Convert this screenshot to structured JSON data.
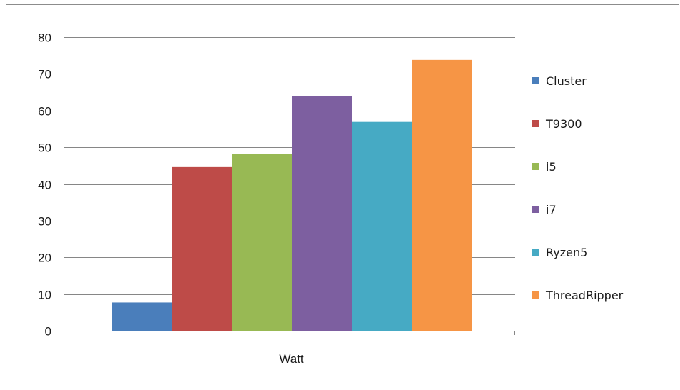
{
  "chart_data": {
    "type": "bar",
    "categories": [
      "Watt"
    ],
    "series": [
      {
        "name": "Cluster",
        "values": [
          7.7
        ],
        "color": "#4a7ebb"
      },
      {
        "name": "T9300",
        "values": [
          44.6
        ],
        "color": "#be4b48"
      },
      {
        "name": "i5",
        "values": [
          48.1
        ],
        "color": "#98b954"
      },
      {
        "name": "i7",
        "values": [
          63.9
        ],
        "color": "#7d5fa0"
      },
      {
        "name": "Ryzen5",
        "values": [
          56.9
        ],
        "color": "#46aac4"
      },
      {
        "name": "ThreadRipper",
        "values": [
          73.8
        ],
        "color": "#f69545"
      }
    ],
    "ylim": [
      0,
      80
    ],
    "yticks": [
      0,
      10,
      20,
      30,
      40,
      50,
      60,
      70,
      80
    ],
    "grid": true,
    "legend": "right",
    "title": "",
    "xlabel": "",
    "ylabel": ""
  }
}
